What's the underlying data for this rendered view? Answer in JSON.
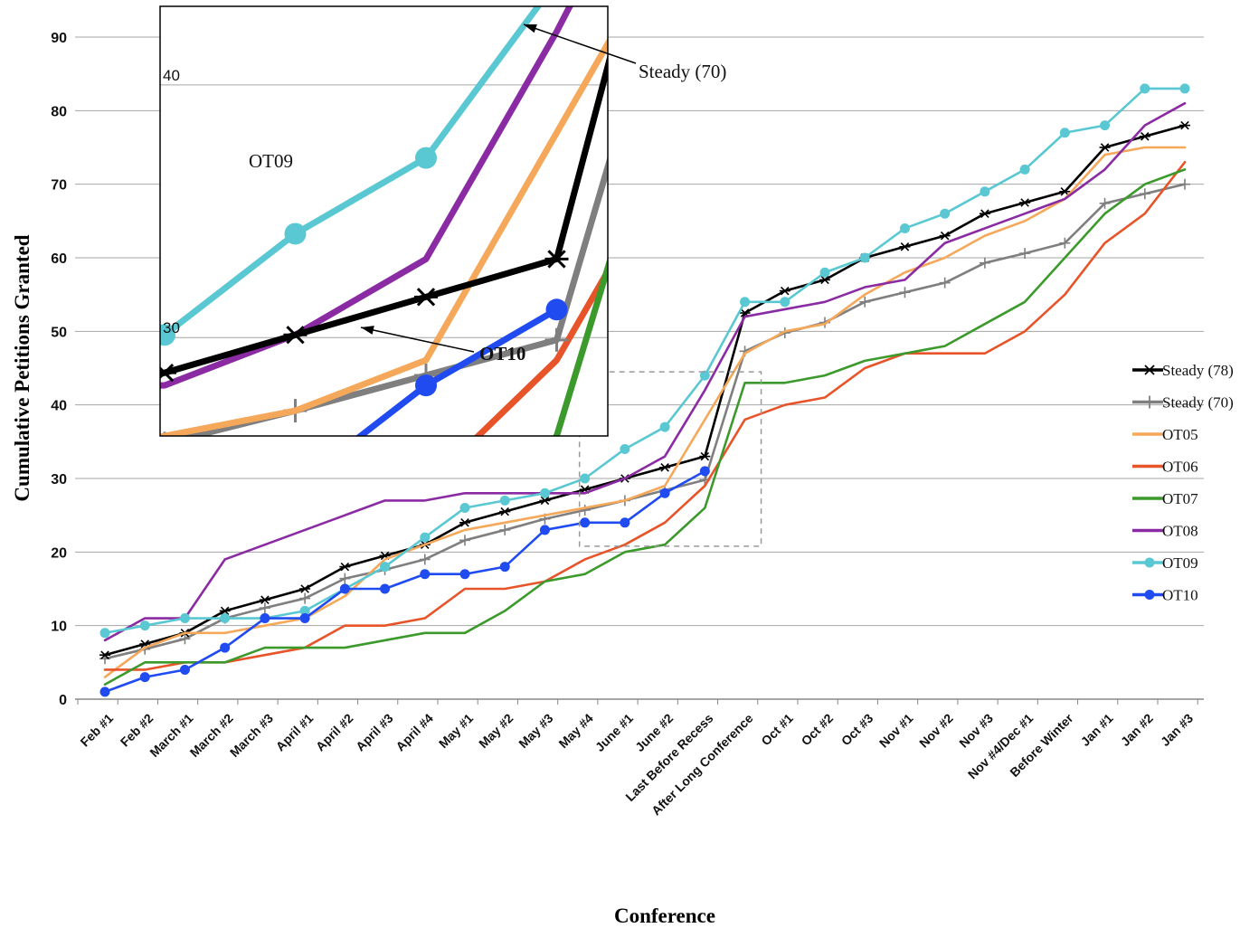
{
  "chart_data": {
    "type": "line",
    "xlabel": "Conference",
    "ylabel": "Cumulative Petitions Granted",
    "ylim": [
      0,
      90
    ],
    "yticks": [
      0,
      10,
      20,
      30,
      40,
      50,
      60,
      70,
      80,
      90
    ],
    "grid": "horizontal",
    "legend_position": "right",
    "categories": [
      "Feb #1",
      "Feb #2",
      "March #1",
      "March #2",
      "March #3",
      "April #1",
      "April #2",
      "April #3",
      "April #4",
      "May #1",
      "May #2",
      "May #3",
      "May #4",
      "June #1",
      "June #2",
      "Last Before Recess",
      "After Long Conference",
      "Oct #1",
      "Oct #2",
      "Oct #3",
      "Nov #1",
      "Nov #2",
      "Nov #3",
      "Nov #4/Dec #1",
      "Before Winter",
      "Jan #1",
      "Jan #2",
      "Jan #3"
    ],
    "series": [
      {
        "name": "Steady (78)",
        "color": "#000000",
        "marker": "asterisk",
        "values": [
          6,
          7.5,
          9,
          12,
          13.5,
          15,
          18,
          19.5,
          21,
          24,
          25.5,
          27,
          28.5,
          30,
          31.5,
          33,
          52.5,
          55.5,
          57,
          60,
          61.5,
          63,
          66,
          67.5,
          69,
          75,
          76.5,
          78
        ]
      },
      {
        "name": "Steady (70)",
        "color": "#7f7f7f",
        "marker": "plus",
        "values": [
          5.5,
          6.8,
          8.2,
          11,
          12.4,
          13.7,
          16.4,
          17.6,
          19,
          21.6,
          23,
          24.5,
          25.7,
          27,
          28.4,
          29.8,
          47.3,
          49.8,
          51.2,
          54,
          55.3,
          56.6,
          59.3,
          60.6,
          62,
          67.4,
          68.7,
          70
        ]
      },
      {
        "name": "OT05",
        "color": "#f5a85a",
        "marker": "none",
        "values": [
          3,
          7,
          9,
          9,
          10,
          11,
          14,
          19,
          21,
          23,
          24,
          25,
          26,
          27,
          29,
          38,
          47,
          50,
          51,
          55,
          58,
          60,
          63,
          65,
          68,
          74,
          75,
          75
        ]
      },
      {
        "name": "OT06",
        "color": "#e8542a",
        "marker": "none",
        "values": [
          4,
          4,
          5,
          5,
          6,
          7,
          10,
          10,
          11,
          15,
          15,
          16,
          19,
          21,
          24,
          29,
          38,
          40,
          41,
          45,
          47,
          47,
          47,
          50,
          55,
          62,
          66,
          73
        ]
      },
      {
        "name": "OT07",
        "color": "#3c9a2c",
        "marker": "none",
        "values": [
          2,
          5,
          5,
          5,
          7,
          7,
          7,
          8,
          9,
          9,
          12,
          16,
          17,
          20,
          21,
          26,
          43,
          43,
          44,
          46,
          47,
          48,
          51,
          54,
          60,
          66,
          70,
          72
        ]
      },
      {
        "name": "OT08",
        "color": "#8b2ba3",
        "marker": "none",
        "values": [
          8,
          11,
          11,
          19,
          21,
          23,
          25,
          27,
          27,
          28,
          28,
          28,
          28,
          30,
          33,
          42,
          52,
          53,
          54,
          56,
          57,
          62,
          64,
          66,
          68,
          72,
          78,
          81
        ]
      },
      {
        "name": "OT09",
        "color": "#5ac8d2",
        "marker": "dot",
        "values": [
          9,
          10,
          11,
          11,
          11,
          12,
          15,
          18,
          22,
          26,
          27,
          28,
          30,
          34,
          37,
          44,
          54,
          54,
          58,
          60,
          64,
          66,
          69,
          72,
          77,
          78,
          83,
          83
        ]
      },
      {
        "name": "OT10",
        "color": "#1f4bf0",
        "marker": "dot",
        "values": [
          1,
          3,
          4,
          7,
          11,
          11,
          15,
          15,
          17,
          17,
          18,
          23,
          24,
          24,
          28,
          31,
          null,
          null,
          null,
          null,
          null,
          null,
          null,
          null,
          null,
          null,
          null,
          null
        ]
      }
    ],
    "inset": {
      "x_range": [
        "May #4",
        "After Long Conference"
      ],
      "ylim": [
        26,
        43
      ],
      "yticks": [
        30,
        40
      ],
      "labels": {
        "ot09": "OT09",
        "ot10": "OT10",
        "steady70": "Steady (70)"
      }
    }
  }
}
